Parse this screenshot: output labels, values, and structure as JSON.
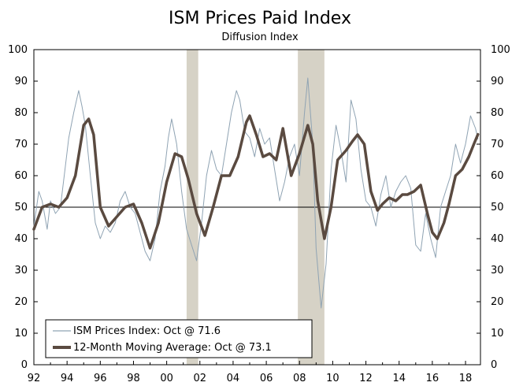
{
  "chart_data": {
    "type": "line",
    "title": "ISM Prices Paid Index",
    "subtitle": "Diffusion Index",
    "ylim": [
      0,
      100
    ],
    "y_ticks": [
      0,
      10,
      20,
      30,
      40,
      50,
      60,
      70,
      80,
      90,
      100
    ],
    "x_range": [
      1992,
      2018.9
    ],
    "x_ticks": [
      1992,
      1994,
      1996,
      1998,
      2000,
      2002,
      2004,
      2006,
      2008,
      2010,
      2012,
      2014,
      2016,
      2018
    ],
    "x_tick_labels": [
      "92",
      "94",
      "96",
      "98",
      "00",
      "02",
      "04",
      "06",
      "08",
      "10",
      "12",
      "14",
      "16",
      "18"
    ],
    "reference_line": 50,
    "recessions": [
      [
        2001.2,
        2001.9
      ],
      [
        2007.9,
        2009.5
      ]
    ],
    "colors": {
      "recession": "#d6d2c6",
      "series_thin": "#8fa3b3",
      "series_thick": "#5a4a40",
      "axis": "#000000"
    },
    "legend": [
      {
        "label": "ISM Prices Index: Oct @ 71.6"
      },
      {
        "label": "12-Month Moving Average: Oct @ 73.1"
      }
    ],
    "series": [
      {
        "name": "ISM Prices Index",
        "x": [
          1992.0,
          1992.3,
          1992.5,
          1992.8,
          1993.0,
          1993.3,
          1993.6,
          1993.9,
          1994.1,
          1994.4,
          1994.7,
          1994.9,
          1995.1,
          1995.4,
          1995.7,
          1996.0,
          1996.3,
          1996.6,
          1996.9,
          1997.2,
          1997.5,
          1997.8,
          1998.1,
          1998.4,
          1998.7,
          1999.0,
          1999.3,
          1999.6,
          1999.9,
          2000.1,
          2000.3,
          2000.6,
          2000.9,
          2001.2,
          2001.5,
          2001.8,
          2002.1,
          2002.4,
          2002.7,
          2003.0,
          2003.3,
          2003.6,
          2003.9,
          2004.2,
          2004.4,
          2004.7,
          2005.0,
          2005.3,
          2005.6,
          2005.9,
          2006.2,
          2006.5,
          2006.8,
          2007.1,
          2007.4,
          2007.7,
          2008.0,
          2008.3,
          2008.5,
          2008.8,
          2009.0,
          2009.3,
          2009.6,
          2009.9,
          2010.2,
          2010.5,
          2010.8,
          2011.1,
          2011.4,
          2011.7,
          2012.0,
          2012.3,
          2012.6,
          2012.9,
          2013.2,
          2013.5,
          2013.8,
          2014.1,
          2014.4,
          2014.7,
          2015.0,
          2015.3,
          2015.6,
          2015.9,
          2016.2,
          2016.5,
          2016.8,
          2017.1,
          2017.4,
          2017.7,
          2018.0,
          2018.3,
          2018.6,
          2018.75
        ],
        "values": [
          44,
          55,
          52,
          43,
          52,
          48,
          50,
          63,
          72,
          80,
          87,
          82,
          76,
          60,
          45,
          40,
          44,
          42,
          45,
          52,
          55,
          50,
          48,
          42,
          36,
          33,
          40,
          55,
          63,
          72,
          78,
          70,
          55,
          43,
          38,
          33,
          45,
          60,
          68,
          62,
          60,
          70,
          80,
          87,
          84,
          74,
          72,
          66,
          75,
          70,
          72,
          62,
          52,
          58,
          66,
          70,
          60,
          80,
          91,
          70,
          37,
          18,
          32,
          62,
          76,
          68,
          58,
          84,
          78,
          62,
          52,
          50,
          44,
          54,
          60,
          50,
          55,
          58,
          60,
          56,
          38,
          36,
          48,
          40,
          34,
          50,
          55,
          60,
          70,
          64,
          70,
          79,
          75,
          71.6
        ]
      },
      {
        "name": "12-Month Moving Average",
        "x": [
          1992.0,
          1992.5,
          1993.0,
          1993.5,
          1994.0,
          1994.5,
          1995.0,
          1995.3,
          1995.6,
          1996.0,
          1996.5,
          1997.0,
          1997.5,
          1998.0,
          1998.5,
          1999.0,
          1999.5,
          2000.0,
          2000.5,
          2000.9,
          2001.3,
          2001.8,
          2002.3,
          2002.8,
          2003.3,
          2003.8,
          2004.3,
          2004.8,
          2005.0,
          2005.4,
          2005.8,
          2006.2,
          2006.6,
          2007.0,
          2007.5,
          2008.0,
          2008.5,
          2008.8,
          2009.1,
          2009.5,
          2009.9,
          2010.3,
          2010.8,
          2011.2,
          2011.5,
          2011.9,
          2012.3,
          2012.7,
          2013.0,
          2013.4,
          2013.8,
          2014.2,
          2014.5,
          2014.9,
          2015.3,
          2015.7,
          2016.0,
          2016.3,
          2016.7,
          2017.0,
          2017.4,
          2017.8,
          2018.2,
          2018.5,
          2018.75
        ],
        "values": [
          43,
          50,
          51,
          50,
          53,
          60,
          76,
          78,
          73,
          50,
          44,
          47,
          50,
          51,
          45,
          37,
          45,
          58,
          67,
          66,
          59,
          48,
          41,
          50,
          60,
          60,
          66,
          77,
          79,
          73,
          66,
          67,
          65,
          75,
          60,
          67,
          76,
          70,
          52,
          40,
          50,
          65,
          68,
          71,
          73,
          70,
          55,
          49,
          51,
          53,
          52,
          54,
          54,
          55,
          57,
          48,
          42,
          40,
          45,
          51,
          60,
          62,
          66,
          70,
          73.1
        ]
      }
    ]
  }
}
